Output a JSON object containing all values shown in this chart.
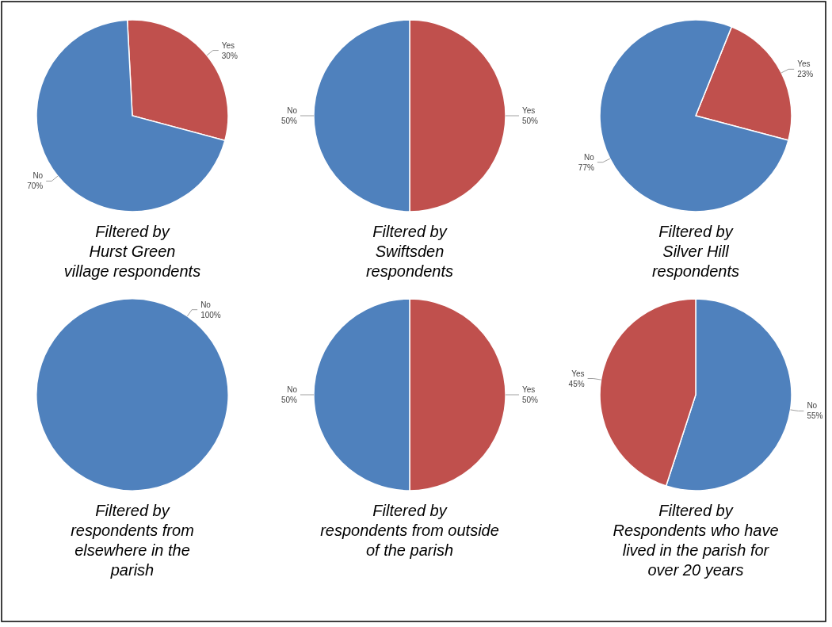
{
  "chart_data": [
    {
      "type": "pie",
      "title": "Filtered by\nHurst Green\nvillage respondents",
      "categories": [
        "Yes",
        "No"
      ],
      "values": [
        30,
        70
      ],
      "colors": [
        "#c0504d",
        "#4f81bd"
      ],
      "value_labels": [
        "30%",
        "70%"
      ]
    },
    {
      "type": "pie",
      "title": "Filtered by\nSwiftsden\nrespondents",
      "categories": [
        "Yes",
        "No"
      ],
      "values": [
        50,
        50
      ],
      "colors": [
        "#c0504d",
        "#4f81bd"
      ],
      "value_labels": [
        "50%",
        "50%"
      ]
    },
    {
      "type": "pie",
      "title": "Filtered by\nSilver Hill\nrespondents",
      "categories": [
        "Yes",
        "No"
      ],
      "values": [
        23,
        77
      ],
      "colors": [
        "#c0504d",
        "#4f81bd"
      ],
      "value_labels": [
        "23%",
        "77%"
      ]
    },
    {
      "type": "pie",
      "title": "Filtered by\nrespondents from\nelsewhere in the\nparish",
      "categories": [
        "No"
      ],
      "values": [
        100
      ],
      "colors": [
        "#4f81bd"
      ],
      "value_labels": [
        "100%"
      ]
    },
    {
      "type": "pie",
      "title": "Filtered by\nrespondents from outside\nof the parish",
      "categories": [
        "Yes",
        "No"
      ],
      "values": [
        50,
        50
      ],
      "colors": [
        "#c0504d",
        "#4f81bd"
      ],
      "value_labels": [
        "50%",
        "50%"
      ]
    },
    {
      "type": "pie",
      "title": "Filtered by\nRespondents who have\nlived in the parish for\nover 20 years",
      "categories": [
        "No",
        "Yes"
      ],
      "values": [
        55,
        45
      ],
      "colors": [
        "#4f81bd",
        "#c0504d"
      ],
      "value_labels": [
        "55%",
        "45%"
      ]
    }
  ]
}
